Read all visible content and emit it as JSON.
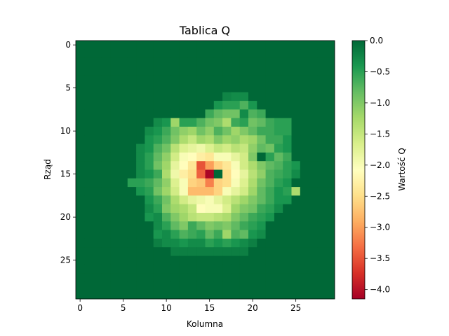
{
  "chart_data": {
    "type": "heatmap",
    "title": "Tablica Q",
    "xlabel": "Kolumna",
    "ylabel": "Rząd",
    "colorbar_label": "Wartość Q",
    "colormap": "RdYlGn",
    "rows": 30,
    "cols": 30,
    "vmin": -4.15,
    "vmax": 0.0,
    "x_ticks": [
      0,
      5,
      10,
      15,
      20,
      25
    ],
    "y_ticks": [
      0,
      5,
      10,
      15,
      20,
      25
    ],
    "colorbar_ticks": [
      "0.0",
      "−0.5",
      "−1.0",
      "−1.5",
      "−2.0",
      "−2.5",
      "−3.0",
      "−3.5",
      "−4.0"
    ],
    "colorbar_tick_values": [
      0.0,
      -0.5,
      -1.0,
      -1.5,
      -2.0,
      -2.5,
      -3.0,
      -3.5,
      -4.0
    ],
    "values": [
      [
        0,
        0,
        0,
        0,
        0,
        0,
        0,
        0,
        0,
        0,
        0,
        0,
        0,
        0,
        0,
        0,
        0,
        0,
        0,
        0,
        0,
        0,
        0,
        0,
        0,
        0,
        0,
        0,
        0,
        0
      ],
      [
        0,
        0,
        0,
        0,
        0,
        0,
        0,
        0,
        0,
        0,
        0,
        0,
        0,
        0,
        0,
        0,
        0,
        0,
        0,
        0,
        0,
        0,
        0,
        0,
        0,
        0,
        0,
        0,
        0,
        0
      ],
      [
        0,
        0,
        0,
        0,
        0,
        0,
        0,
        0,
        0,
        0,
        0,
        0,
        0,
        0,
        0,
        0,
        0,
        0,
        0,
        0,
        0,
        0,
        0,
        0,
        0,
        0,
        0,
        0,
        0,
        0
      ],
      [
        0,
        0,
        0,
        0,
        0,
        0,
        0,
        0,
        0,
        0,
        0,
        0,
        0,
        0,
        0,
        0,
        0,
        0,
        0,
        0,
        0,
        0,
        0,
        0,
        0,
        0,
        0,
        0,
        0,
        0
      ],
      [
        0,
        0,
        0,
        0,
        0,
        0,
        0,
        0,
        0,
        0,
        0,
        0,
        0,
        0,
        0,
        0,
        0,
        0,
        0,
        0,
        0,
        0,
        0,
        0,
        0,
        0,
        0,
        0,
        0,
        0
      ],
      [
        0,
        0,
        0,
        0,
        0,
        0,
        0,
        0,
        0,
        0,
        0,
        0,
        0,
        0,
        0,
        0,
        0,
        0,
        0,
        0,
        0,
        0,
        0,
        0,
        0,
        0,
        0,
        0,
        0,
        0
      ],
      [
        0,
        0,
        0,
        0,
        0,
        0,
        0,
        0,
        0,
        0,
        0,
        0,
        0,
        0,
        0,
        0,
        0,
        -0.25,
        -0.3,
        -0.3,
        0,
        0,
        0,
        0,
        0,
        0,
        0,
        0,
        0,
        0
      ],
      [
        0,
        0,
        0,
        0,
        0,
        0,
        0,
        0,
        0,
        0,
        0,
        0,
        0,
        0,
        0,
        0,
        -0.4,
        -0.5,
        -0.5,
        -0.7,
        -0.4,
        0,
        0,
        0,
        0,
        0,
        0,
        0,
        0,
        0
      ],
      [
        0,
        0,
        0,
        0,
        0,
        0,
        0,
        0,
        0,
        0,
        0,
        0,
        0,
        0,
        0,
        -0.6,
        -0.8,
        -0.9,
        -0.9,
        -0.3,
        -0.7,
        -0.6,
        0,
        0,
        0,
        0,
        0,
        0,
        0,
        0
      ],
      [
        0,
        0,
        0,
        0,
        0,
        0,
        0,
        0,
        0,
        -0.3,
        -0.4,
        -1.2,
        -0.5,
        -0.5,
        -0.7,
        -0.9,
        -1.0,
        -1.3,
        -0.6,
        -0.5,
        -0.9,
        -0.8,
        -0.6,
        -0.5,
        -0.5,
        0,
        0,
        0,
        0,
        0
      ],
      [
        0,
        0,
        0,
        0,
        0,
        0,
        0,
        0,
        -0.3,
        -0.4,
        -0.6,
        -0.9,
        -1.1,
        -1.2,
        -0.9,
        -1.1,
        -0.7,
        -0.9,
        -1.2,
        -1.0,
        -0.8,
        -0.6,
        -0.6,
        -0.5,
        -0.5,
        0,
        0,
        0,
        0,
        0
      ],
      [
        0,
        0,
        0,
        0,
        0,
        0,
        0,
        0,
        -0.4,
        -0.5,
        -0.7,
        -1.0,
        -1.3,
        -1.5,
        -1.2,
        -1.3,
        -1.0,
        -1.2,
        -1.1,
        -1.3,
        -1.2,
        -0.9,
        -0.6,
        -0.6,
        -0.4,
        0,
        0,
        0,
        0,
        0
      ],
      [
        0,
        0,
        0,
        0,
        0,
        0,
        0,
        -0.3,
        -0.4,
        -0.7,
        -0.9,
        -1.4,
        -1.7,
        -1.8,
        -1.9,
        -1.7,
        -1.5,
        -1.6,
        -1.4,
        -1.5,
        -1.1,
        -0.8,
        -0.9,
        -0.5,
        -0.4,
        0,
        0,
        0,
        0,
        0
      ],
      [
        0,
        0,
        0,
        0,
        0,
        0,
        0,
        -0.3,
        -0.5,
        -0.8,
        -1.1,
        -1.6,
        -2.0,
        -2.1,
        -2.3,
        -2.4,
        -2.0,
        -2.0,
        -1.8,
        -1.6,
        -1.0,
        0,
        -0.5,
        -0.8,
        -0.6,
        0,
        0,
        0,
        0,
        0
      ],
      [
        0,
        0,
        0,
        0,
        0,
        0,
        0,
        -0.3,
        -0.5,
        -0.9,
        -1.2,
        -1.8,
        -2.1,
        -2.4,
        -3.5,
        -3.0,
        -2.6,
        -2.4,
        -2.0,
        -1.6,
        -1.3,
        -1.0,
        -0.8,
        -0.7,
        -0.5,
        -0.4,
        0,
        0,
        0,
        0
      ],
      [
        0,
        0,
        0,
        0,
        0,
        0,
        0,
        -0.3,
        -0.4,
        -0.6,
        -1.3,
        -1.9,
        -2.3,
        -2.5,
        -3.4,
        -4.1,
        0,
        -2.5,
        -2.1,
        -1.8,
        -1.4,
        -1.1,
        -0.7,
        -0.6,
        -0.5,
        -0.3,
        0,
        0,
        0,
        0
      ],
      [
        0,
        0,
        0,
        0,
        0,
        0,
        -0.5,
        -0.5,
        -0.6,
        -0.8,
        -1.1,
        -1.7,
        -2.0,
        -2.6,
        -2.7,
        -3.2,
        -2.6,
        -2.5,
        -2.0,
        -1.7,
        -1.3,
        -0.9,
        -0.7,
        -0.5,
        -0.4,
        0,
        0,
        0,
        0,
        0
      ],
      [
        0,
        0,
        0,
        0,
        0,
        0,
        0,
        -0.4,
        -0.5,
        -0.9,
        -1.2,
        -1.6,
        -2.0,
        -2.8,
        -2.8,
        -2.8,
        -2.6,
        -2.0,
        -1.8,
        -1.6,
        -1.2,
        -0.8,
        -0.6,
        -0.4,
        -0.5,
        -1.3,
        0,
        0,
        0,
        0
      ],
      [
        0,
        0,
        0,
        0,
        0,
        0,
        0,
        0,
        -0.4,
        -0.6,
        -0.9,
        -1.3,
        -1.6,
        -1.8,
        -1.9,
        -2.0,
        -1.8,
        -1.6,
        -1.4,
        -1.2,
        -1.0,
        -0.8,
        -0.6,
        -0.4,
        -0.4,
        0,
        0,
        0,
        0,
        0
      ],
      [
        0,
        0,
        0,
        0,
        0,
        0,
        0,
        0,
        -0.3,
        -0.5,
        -1.0,
        -1.2,
        -1.3,
        -1.5,
        -2.1,
        -2.0,
        -2.0,
        -1.7,
        -1.2,
        -1.0,
        -0.9,
        -0.6,
        -0.5,
        -0.3,
        0,
        0,
        0,
        0,
        0,
        0
      ],
      [
        0,
        0,
        0,
        0,
        0,
        0,
        0,
        0,
        -0.4,
        -0.3,
        -0.7,
        -1.0,
        -1.2,
        -1.4,
        -1.5,
        -1.5,
        -1.4,
        -1.3,
        -1.0,
        -0.8,
        -0.6,
        -0.5,
        -0.4,
        0,
        0,
        0,
        0,
        0,
        0,
        0
      ],
      [
        0,
        0,
        0,
        0,
        0,
        0,
        0,
        0,
        0,
        -0.3,
        -0.5,
        -0.8,
        -1.0,
        -0.6,
        -0.8,
        -1.0,
        -0.9,
        -1.0,
        -0.8,
        -0.6,
        -0.5,
        -0.4,
        0,
        0,
        0,
        0,
        0,
        0,
        0,
        0
      ],
      [
        0,
        0,
        0,
        0,
        0,
        0,
        0,
        0,
        0,
        -0.4,
        -0.3,
        -0.5,
        -0.7,
        -0.6,
        -0.5,
        -0.8,
        -0.6,
        -1.2,
        -0.7,
        -0.8,
        -0.4,
        -0.3,
        0,
        0,
        0,
        0,
        0,
        0,
        0,
        0
      ],
      [
        0,
        0,
        0,
        0,
        0,
        0,
        0,
        0,
        0,
        -0.2,
        -0.3,
        -0.3,
        -0.4,
        -0.3,
        -0.3,
        -0.5,
        -0.4,
        -0.5,
        -0.4,
        -0.3,
        -0.2,
        0,
        0,
        0,
        0,
        0,
        0,
        0,
        0,
        0
      ],
      [
        0,
        0,
        0,
        0,
        0,
        0,
        0,
        0,
        0,
        0,
        0,
        -0.2,
        -0.2,
        -0.2,
        -0.2,
        -0.2,
        -0.2,
        -0.2,
        -0.2,
        -0.2,
        0,
        0,
        0,
        0,
        0,
        0,
        0,
        0,
        0,
        0
      ],
      [
        0,
        0,
        0,
        0,
        0,
        0,
        0,
        0,
        0,
        0,
        0,
        0,
        0,
        0,
        0,
        0,
        0,
        0,
        0,
        0,
        0,
        0,
        0,
        0,
        0,
        0,
        0,
        0,
        0,
        0
      ],
      [
        0,
        0,
        0,
        0,
        0,
        0,
        0,
        0,
        0,
        0,
        0,
        0,
        0,
        0,
        0,
        0,
        0,
        0,
        0,
        0,
        0,
        0,
        0,
        0,
        0,
        0,
        0,
        0,
        0,
        0
      ],
      [
        0,
        0,
        0,
        0,
        0,
        0,
        0,
        0,
        0,
        0,
        0,
        0,
        0,
        0,
        0,
        0,
        0,
        0,
        0,
        0,
        0,
        0,
        0,
        0,
        0,
        0,
        0,
        0,
        0,
        0
      ],
      [
        0,
        0,
        0,
        0,
        0,
        0,
        0,
        0,
        0,
        0,
        0,
        0,
        0,
        0,
        0,
        0,
        0,
        0,
        0,
        0,
        0,
        0,
        0,
        0,
        0,
        0,
        0,
        0,
        0,
        0
      ],
      [
        0,
        0,
        0,
        0,
        0,
        0,
        0,
        0,
        0,
        0,
        0,
        0,
        0,
        0,
        0,
        0,
        0,
        0,
        0,
        0,
        0,
        0,
        0,
        0,
        0,
        0,
        0,
        0,
        0,
        0
      ]
    ]
  }
}
